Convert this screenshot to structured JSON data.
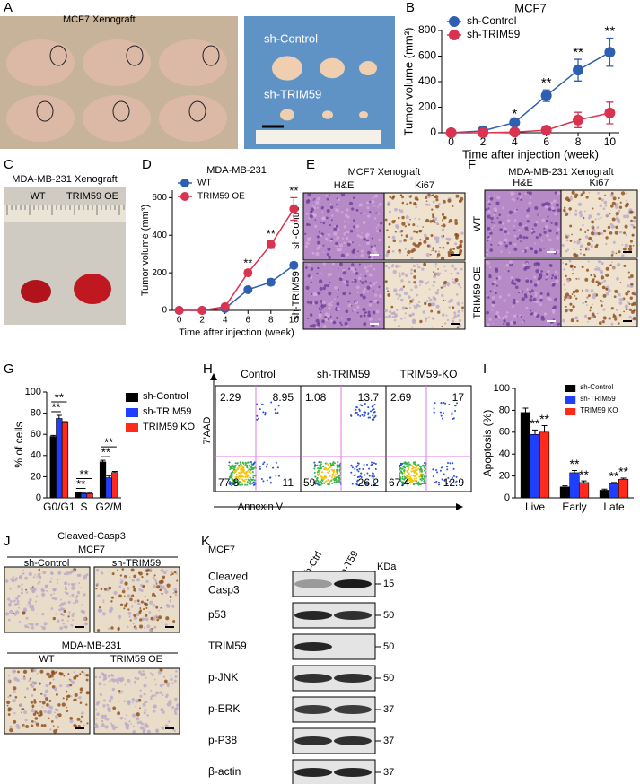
{
  "panel_labels": [
    "A",
    "B",
    "C",
    "D",
    "E",
    "F",
    "G",
    "H",
    "I",
    "J",
    "K"
  ],
  "panel_a": {
    "title": "MCF7 Xenograft",
    "groups": [
      "sh-Control",
      "sh-TRIM59"
    ]
  },
  "panel_c": {
    "title": "MDA-MB-231 Xenograft",
    "groups": [
      "WT",
      "TRIM59 OE"
    ]
  },
  "panel_e": {
    "title": "MCF7 Xenograft",
    "columns": [
      "H&E",
      "Ki67"
    ],
    "rows": [
      "sh-Control",
      "sh-TRIM59"
    ]
  },
  "panel_f": {
    "title": "MDA-MB-231 Xenograft",
    "columns": [
      "H&E",
      "Ki67"
    ],
    "rows": [
      "WT",
      "TRIM59 OE"
    ]
  },
  "panel_h": {
    "ylabel": "7'AAD",
    "xlabel": "Annexin V",
    "plots": [
      {
        "name": "Control",
        "quadrants": [
          2.29,
          8.95,
          77.8,
          11
        ]
      },
      {
        "name": "sh-TRIM59",
        "quadrants": [
          1.08,
          13.7,
          59,
          26.2
        ]
      },
      {
        "name": "TRIM59-KO",
        "quadrants": [
          2.69,
          17,
          67.4,
          12.9
        ]
      }
    ]
  },
  "panel_j": {
    "title": "Cleaved-Casp3",
    "groups": [
      {
        "name": "MCF7",
        "conditions": [
          "sh-Control",
          "sh-TRIM59"
        ]
      },
      {
        "name": "MDA-MB-231",
        "conditions": [
          "WT",
          "TRIM59 OE"
        ]
      }
    ]
  },
  "panel_k": {
    "cell_line": "MCF7",
    "lanes": [
      "sh-Ctrl",
      "sh-T59"
    ],
    "unit": "KDa",
    "rows": [
      {
        "label": [
          "Cleaved",
          "Casp3"
        ],
        "marker": 15
      },
      {
        "label": [
          "p53"
        ],
        "marker": 50
      },
      {
        "label": [
          "TRIM59"
        ],
        "marker": 50
      },
      {
        "label": [
          "p-JNK"
        ],
        "marker": 50
      },
      {
        "label": [
          "p-ERK"
        ],
        "marker": 37
      },
      {
        "label": [
          "p-P38"
        ],
        "marker": 37
      },
      {
        "label": [
          "β-actin"
        ],
        "marker": 37
      }
    ]
  },
  "chart_data": [
    {
      "type": "line",
      "title": "MCF7",
      "xlabel": "Time after injection (week)",
      "ylabel": "Tumor volume (mm³)",
      "x": [
        0,
        2,
        4,
        6,
        8,
        10
      ],
      "xlim": [
        -0.6,
        10.6
      ],
      "xticks": [
        0,
        2,
        4,
        6,
        8,
        10
      ],
      "ylim": [
        0,
        800
      ],
      "yticks": [
        0,
        200,
        400,
        600,
        800
      ],
      "legend": "upper left",
      "series": [
        {
          "name": "sh-Control",
          "color": "#2f5fb0",
          "values": [
            0,
            15,
            80,
            290,
            490,
            630
          ],
          "errors": [
            0,
            8,
            15,
            45,
            85,
            110
          ]
        },
        {
          "name": "sh-TRIM59",
          "color": "#d9334f",
          "values": [
            0,
            0,
            5,
            20,
            100,
            155
          ],
          "errors": [
            0,
            0,
            5,
            15,
            60,
            85
          ]
        }
      ],
      "significance": [
        null,
        null,
        "*",
        "**",
        "**",
        "**"
      ]
    },
    {
      "type": "line",
      "title": "MDA-MB-231",
      "xlabel": "Time after injection (week)",
      "ylabel": "Tumor volume (mm³)",
      "x": [
        0,
        2,
        4,
        6,
        8,
        10
      ],
      "xlim": [
        -0.6,
        10.6
      ],
      "xticks": [
        0,
        2,
        4,
        6,
        8,
        10
      ],
      "ylim": [
        0,
        640
      ],
      "yticks": [
        0,
        200,
        400,
        600
      ],
      "legend": "upper left",
      "series": [
        {
          "name": "WT",
          "color": "#2f5fb0",
          "values": [
            0,
            0,
            10,
            110,
            150,
            240
          ],
          "errors": [
            0,
            0,
            3,
            10,
            15,
            15
          ]
        },
        {
          "name": "TRIM59 OE",
          "color": "#d9334f",
          "values": [
            0,
            0,
            20,
            200,
            350,
            540
          ],
          "errors": [
            0,
            0,
            5,
            15,
            20,
            60
          ]
        }
      ],
      "significance": [
        null,
        null,
        null,
        "**",
        "**",
        "**"
      ]
    },
    {
      "type": "bar",
      "ylabel": "% of cells",
      "categories": [
        "G0/G1",
        "S",
        "G2/M"
      ],
      "ylim": [
        0,
        100
      ],
      "yticks": [
        0,
        20,
        40,
        60,
        80,
        100
      ],
      "legend": "right",
      "series": [
        {
          "name": "sh-Control",
          "color": "#000000",
          "values": [
            58,
            5,
            34
          ],
          "errors": [
            1,
            0.5,
            1.5
          ]
        },
        {
          "name": "sh-TRIM59",
          "color": "#1f3fff",
          "values": [
            75,
            4,
            19
          ],
          "errors": [
            3,
            0.5,
            2
          ],
          "significance": [
            "**",
            "**",
            "**"
          ]
        },
        {
          "name": "TRIM59 KO",
          "color": "#ff2a1a",
          "values": [
            71,
            4,
            24
          ],
          "errors": [
            1,
            0.5,
            1
          ],
          "significance": [
            "**",
            "**",
            "**"
          ]
        }
      ]
    },
    {
      "type": "bar",
      "ylabel": "Apoptosis (%)",
      "categories": [
        "Live",
        "Early",
        "Late"
      ],
      "ylim": [
        0,
        100
      ],
      "yticks": [
        0,
        20,
        40,
        60,
        80,
        100
      ],
      "legend": "upper right",
      "series": [
        {
          "name": "sh-Control",
          "color": "#000000",
          "values": [
            78,
            10,
            7
          ],
          "errors": [
            4,
            1,
            1
          ]
        },
        {
          "name": "sh-TRIM59",
          "color": "#1f3fff",
          "values": [
            58,
            23,
            13
          ],
          "errors": [
            4,
            2,
            1
          ],
          "significance": [
            "**",
            "**",
            "**"
          ]
        },
        {
          "name": "TRIM59 KO",
          "color": "#ff2a1a",
          "values": [
            60,
            14,
            17
          ],
          "errors": [
            6,
            1.5,
            1
          ],
          "significance": [
            "**",
            "**",
            "**"
          ]
        }
      ]
    }
  ]
}
